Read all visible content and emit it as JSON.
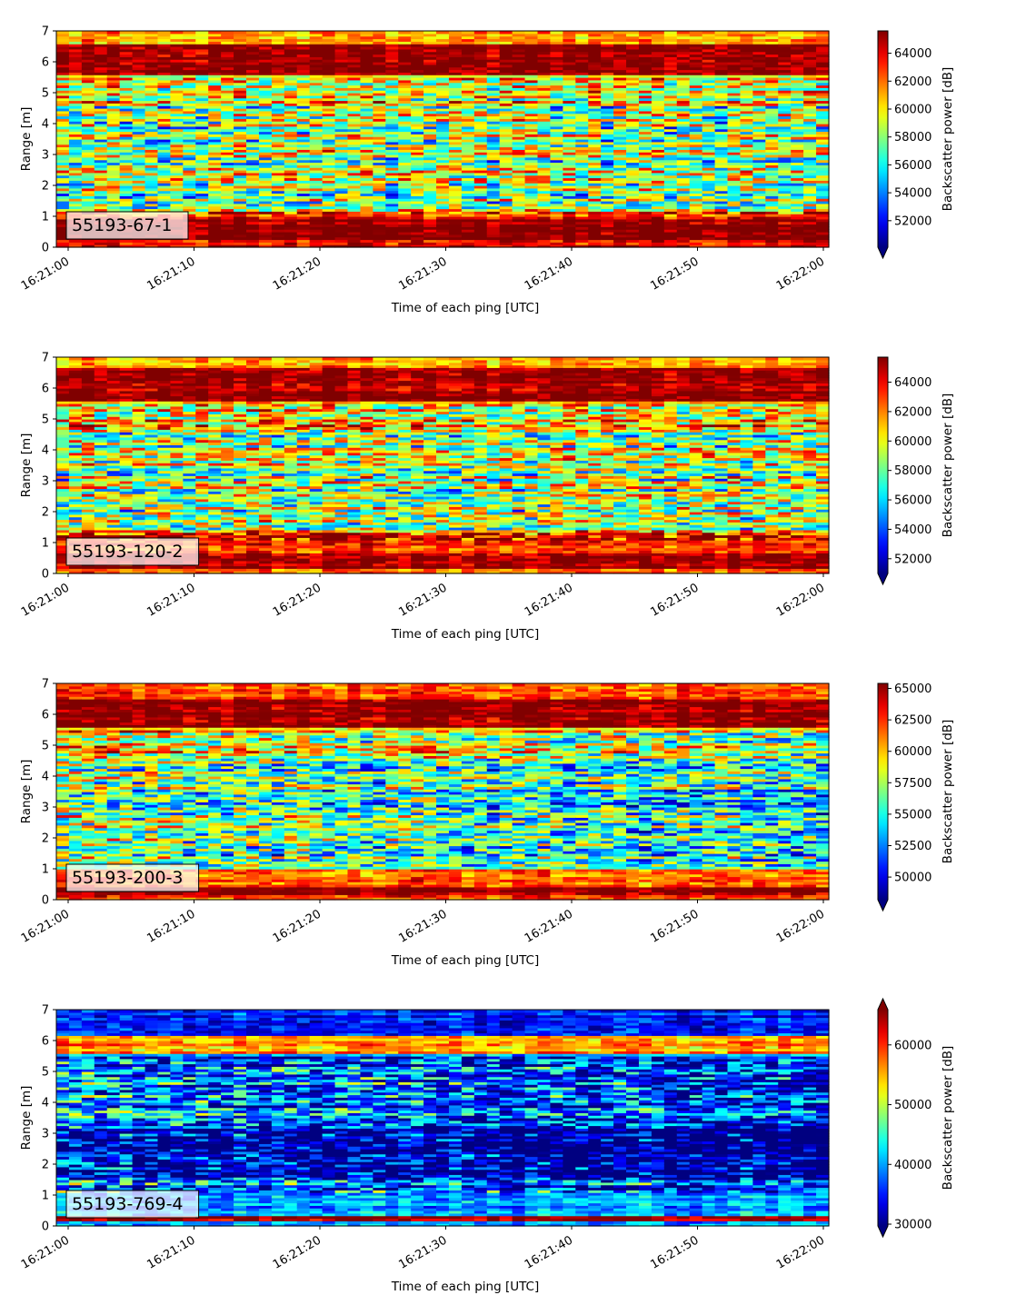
{
  "figure": {
    "background": "#ffffff",
    "colormap": "jet",
    "colormap_stops": [
      "#00007f",
      "#0000ff",
      "#007fff",
      "#00ffff",
      "#7fff7f",
      "#ffff00",
      "#ff7f00",
      "#ff0000",
      "#7f0000"
    ]
  },
  "chart_data": [
    {
      "type": "heatmap",
      "panel_label": "55193-67-1",
      "xlabel": "Time of each ping [UTC]",
      "ylabel": "Range [m]",
      "colorbar_label": "Backscatter power [dB]",
      "x_tick_labels": [
        "16:21:00",
        "16:21:10",
        "16:21:20",
        "16:21:30",
        "16:21:40",
        "16:21:50",
        "16:22:00"
      ],
      "y_tick_labels": [
        "0",
        "1",
        "2",
        "3",
        "4",
        "5",
        "6",
        "7"
      ],
      "x_range": [
        "16:20:59",
        "16:22:00"
      ],
      "ylim": [
        0,
        7
      ],
      "color_range": [
        50100,
        65600
      ],
      "colorbar_ticks": [
        52000,
        54000,
        56000,
        58000,
        60000,
        62000,
        64000
      ],
      "colorbar_tick_labels": [
        "52000",
        "54000",
        "56000",
        "58000",
        "60000",
        "62000",
        "64000"
      ],
      "colorbar_extend": "min",
      "seed": 67,
      "bands": [
        {
          "range": [
            0.0,
            0.25
          ],
          "value": 64000
        },
        {
          "range": [
            0.25,
            0.95
          ],
          "value": 65500
        },
        {
          "range": [
            0.95,
            1.2
          ],
          "value": 63000
        },
        {
          "range": [
            1.2,
            4.6
          ],
          "value": 58000
        },
        {
          "range": [
            4.6,
            5.6
          ],
          "value": 59500
        },
        {
          "range": [
            5.6,
            6.6
          ],
          "value": 65500
        },
        {
          "range": [
            6.6,
            7.0
          ],
          "value": 61000
        }
      ],
      "trend": 0.0
    },
    {
      "type": "heatmap",
      "panel_label": "55193-120-2",
      "xlabel": "Time of each ping [UTC]",
      "ylabel": "Range [m]",
      "colorbar_label": "Backscatter power [dB]",
      "x_tick_labels": [
        "16:21:00",
        "16:21:10",
        "16:21:20",
        "16:21:30",
        "16:21:40",
        "16:21:50",
        "16:22:00"
      ],
      "y_tick_labels": [
        "0",
        "1",
        "2",
        "3",
        "4",
        "5",
        "6",
        "7"
      ],
      "x_range": [
        "16:20:59",
        "16:22:00"
      ],
      "ylim": [
        0,
        7
      ],
      "color_range": [
        51000,
        65700
      ],
      "colorbar_ticks": [
        52000,
        54000,
        56000,
        58000,
        60000,
        62000,
        64000
      ],
      "colorbar_tick_labels": [
        "52000",
        "54000",
        "56000",
        "58000",
        "60000",
        "62000",
        "64000"
      ],
      "colorbar_extend": "min",
      "seed": 120,
      "bands": [
        {
          "range": [
            0.0,
            0.15
          ],
          "value": 62000
        },
        {
          "range": [
            0.15,
            0.7
          ],
          "value": 65500
        },
        {
          "range": [
            0.7,
            1.3
          ],
          "value": 63000
        },
        {
          "range": [
            1.3,
            4.6
          ],
          "value": 59000
        },
        {
          "range": [
            4.6,
            5.6
          ],
          "value": 61000
        },
        {
          "range": [
            5.6,
            6.7
          ],
          "value": 65500
        },
        {
          "range": [
            6.7,
            7.0
          ],
          "value": 62000
        }
      ],
      "trend": 0.0
    },
    {
      "type": "heatmap",
      "panel_label": "55193-200-3",
      "xlabel": "Time of each ping [UTC]",
      "ylabel": "Range [m]",
      "colorbar_label": "Backscatter power [dB]",
      "x_tick_labels": [
        "16:21:00",
        "16:21:10",
        "16:21:20",
        "16:21:30",
        "16:21:40",
        "16:21:50",
        "16:22:00"
      ],
      "y_tick_labels": [
        "0",
        "1",
        "2",
        "3",
        "4",
        "5",
        "6",
        "7"
      ],
      "x_range": [
        "16:20:59",
        "16:22:00"
      ],
      "ylim": [
        0,
        7
      ],
      "color_range": [
        48200,
        65400
      ],
      "colorbar_ticks": [
        50000,
        52500,
        55000,
        57500,
        60000,
        62500,
        65000
      ],
      "colorbar_tick_labels": [
        "50000",
        "52500",
        "55000",
        "57500",
        "60000",
        "62500",
        "65000"
      ],
      "colorbar_extend": "min",
      "seed": 200,
      "bands": [
        {
          "range": [
            0.0,
            0.15
          ],
          "value": 62000
        },
        {
          "range": [
            0.15,
            0.45
          ],
          "value": 65300
        },
        {
          "range": [
            0.45,
            1.0
          ],
          "value": 62000
        },
        {
          "range": [
            1.0,
            4.6
          ],
          "value": 56500
        },
        {
          "range": [
            4.6,
            5.6
          ],
          "value": 59000
        },
        {
          "range": [
            5.6,
            6.5
          ],
          "value": 65300
        },
        {
          "range": [
            6.5,
            7.0
          ],
          "value": 61500
        }
      ],
      "trend": -0.05
    },
    {
      "type": "heatmap",
      "panel_label": "55193-769-4",
      "xlabel": "Time of each ping [UTC]",
      "ylabel": "Range [m]",
      "colorbar_label": "Backscatter power [dB]",
      "x_tick_labels": [
        "16:21:00",
        "16:21:10",
        "16:21:20",
        "16:21:30",
        "16:21:40",
        "16:21:50",
        "16:22:00"
      ],
      "y_tick_labels": [
        "0",
        "1",
        "2",
        "3",
        "4",
        "5",
        "6",
        "7"
      ],
      "x_range": [
        "16:20:59",
        "16:22:00"
      ],
      "ylim": [
        0,
        7
      ],
      "color_range": [
        29700,
        65900
      ],
      "colorbar_ticks": [
        30000,
        40000,
        50000,
        60000
      ],
      "colorbar_tick_labels": [
        "30000",
        "40000",
        "50000",
        "60000"
      ],
      "colorbar_extend": "both",
      "seed": 769,
      "bands": [
        {
          "range": [
            0.0,
            0.2
          ],
          "value": 40000
        },
        {
          "range": [
            0.2,
            0.35
          ],
          "value": 65000
        },
        {
          "range": [
            0.35,
            1.5
          ],
          "value": 40000
        },
        {
          "range": [
            1.5,
            3.2
          ],
          "value": 34000
        },
        {
          "range": [
            3.2,
            5.6
          ],
          "value": 40000
        },
        {
          "range": [
            5.6,
            6.2
          ],
          "value": 56000
        },
        {
          "range": [
            6.2,
            7.0
          ],
          "value": 35000
        }
      ],
      "trend": -0.08
    }
  ]
}
